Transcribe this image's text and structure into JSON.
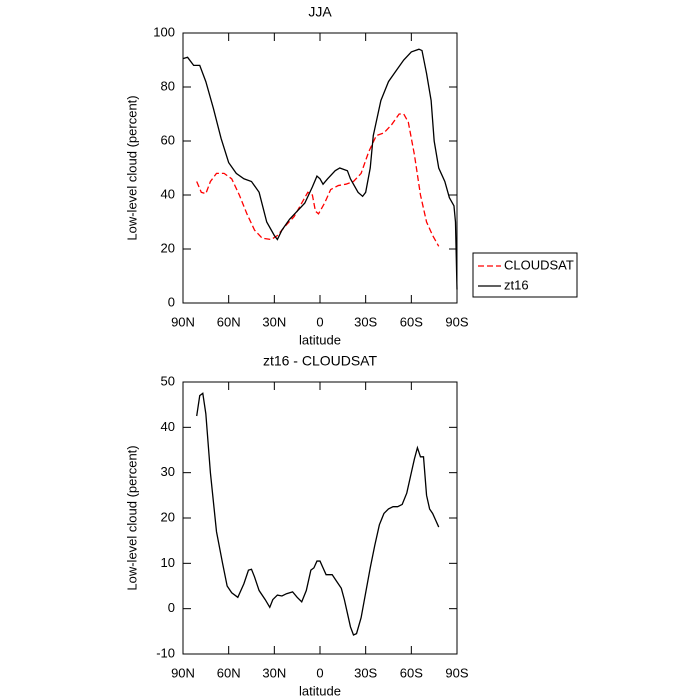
{
  "chart_data": [
    {
      "type": "line",
      "title": "JJA",
      "xlabel": "latitude",
      "ylabel": "Low-level cloud (percent)",
      "xlim": [
        90,
        -90
      ],
      "xticks": [
        {
          "value": 90,
          "label": "90N"
        },
        {
          "value": 60,
          "label": "60N"
        },
        {
          "value": 30,
          "label": "30N"
        },
        0,
        {
          "value": -30,
          "label": "30S"
        },
        {
          "value": -60,
          "label": "60S"
        },
        {
          "value": -90,
          "label": "90S"
        }
      ],
      "ylim": [
        0,
        100
      ],
      "yticks": [
        0,
        20,
        40,
        60,
        80,
        100
      ],
      "legend": "right",
      "series": [
        {
          "name": "CLOUDSAT",
          "color": "#ff0000",
          "dash": true,
          "x": [
            81,
            78,
            75,
            72,
            68,
            63,
            58,
            53,
            48,
            43,
            38,
            32,
            28,
            22,
            17,
            12,
            8,
            5,
            3,
            1,
            -3,
            -7,
            -12,
            -17,
            -22,
            -27,
            -32,
            -37,
            -42,
            -47,
            -52,
            -55,
            -58,
            -62,
            -66,
            -70,
            -74,
            -78
          ],
          "values": [
            45,
            41,
            40.5,
            45,
            48,
            48,
            46,
            40,
            33,
            27,
            24,
            23.5,
            25,
            29,
            32,
            37,
            41,
            40,
            34,
            33,
            37,
            42,
            43.5,
            44,
            45,
            48,
            56,
            62,
            63,
            66,
            70,
            70,
            67,
            55,
            40,
            30,
            25,
            21
          ]
        },
        {
          "name": "zt16",
          "color": "#000000",
          "dash": false,
          "x": [
            90,
            87,
            83,
            79,
            75,
            70,
            65,
            60,
            55,
            50,
            45,
            40,
            35,
            30,
            28,
            25,
            20,
            15,
            10,
            5,
            2,
            0,
            -2,
            -5,
            -10,
            -13,
            -18,
            -20,
            -25,
            -28,
            -30,
            -33,
            -35,
            -40,
            -45,
            -50,
            -55,
            -60,
            -65,
            -67,
            -70,
            -73,
            -75,
            -78,
            -82,
            -85,
            -88,
            -89,
            -90
          ],
          "values": [
            90.5,
            91,
            88,
            88,
            82,
            72,
            61,
            52,
            48,
            46,
            45,
            41,
            30,
            25,
            23.5,
            27,
            31,
            34,
            37,
            43,
            47,
            46,
            44,
            46,
            49,
            50,
            49,
            46,
            41,
            39.5,
            41,
            50,
            62,
            75,
            82,
            86,
            90,
            93,
            94,
            93.5,
            85,
            75,
            60,
            50,
            45,
            39,
            36,
            30,
            5
          ]
        }
      ]
    },
    {
      "type": "line",
      "title": "zt16 - CLOUDSAT",
      "xlabel": "latitude",
      "ylabel": "Low-level cloud (percent)",
      "xlim": [
        90,
        -90
      ],
      "xticks": [
        {
          "value": 90,
          "label": "90N"
        },
        {
          "value": 60,
          "label": "60N"
        },
        {
          "value": 30,
          "label": "30N"
        },
        0,
        {
          "value": -30,
          "label": "30S"
        },
        {
          "value": -60,
          "label": "60S"
        },
        {
          "value": -90,
          "label": "90S"
        }
      ],
      "ylim": [
        -10,
        50
      ],
      "yticks": [
        -10,
        0,
        10,
        20,
        30,
        40,
        50
      ],
      "series": [
        {
          "color": "#000000",
          "dash": false,
          "x": [
            81,
            79,
            77,
            75,
            72,
            68,
            64,
            61,
            58,
            54,
            50,
            47,
            45,
            43,
            40,
            36,
            33,
            31,
            28,
            25,
            22,
            18,
            15,
            12,
            9,
            6,
            4,
            2,
            0,
            -2,
            -4,
            -8,
            -11,
            -14,
            -16,
            -18,
            -20,
            -22,
            -24,
            -27,
            -30,
            -33,
            -36,
            -39,
            -42,
            -45,
            -48,
            -51,
            -54,
            -57,
            -60,
            -62,
            -64,
            -66,
            -68,
            -70,
            -72,
            -74,
            -76,
            -78
          ],
          "values": [
            42.5,
            47,
            47.5,
            43,
            30,
            17,
            10,
            5,
            3.5,
            2.5,
            5.5,
            8.5,
            8.7,
            7,
            4,
            2,
            0.3,
            2,
            3,
            2.8,
            3.3,
            3.7,
            2.5,
            1.5,
            4,
            8.5,
            9,
            10.5,
            10.5,
            9,
            7.5,
            7.5,
            6,
            4.5,
            2,
            -1,
            -4,
            -5.8,
            -5.5,
            -2,
            3.5,
            9,
            14,
            18.5,
            21,
            22,
            22.5,
            22.5,
            23,
            25.5,
            30,
            33,
            35.5,
            33.5,
            33.5,
            25,
            22,
            21,
            19.5,
            18
          ]
        }
      ]
    }
  ]
}
